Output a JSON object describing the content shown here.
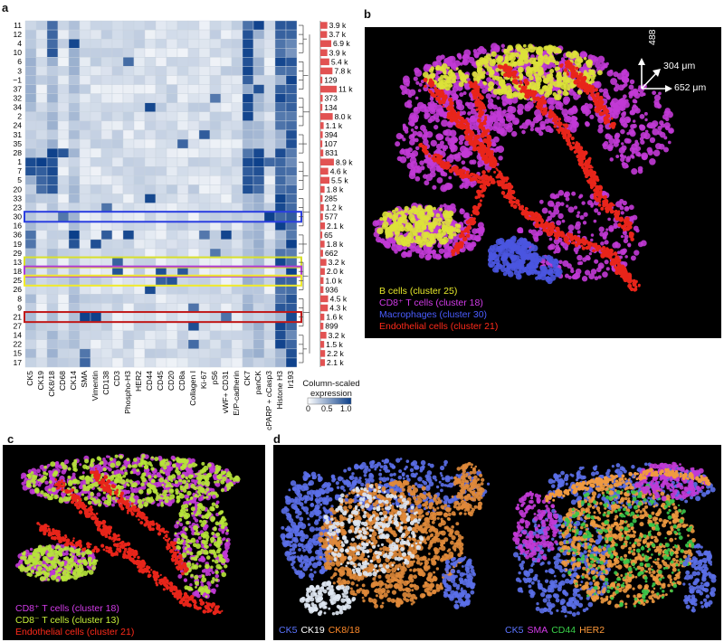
{
  "panels": {
    "a": {
      "letter": "a",
      "rows": [
        "11",
        "12",
        "4",
        "10",
        "6",
        "3",
        "−1",
        "37",
        "32",
        "34",
        "2",
        "24",
        "31",
        "35",
        "28",
        "1",
        "7",
        "5",
        "20",
        "33",
        "23",
        "30",
        "16",
        "36",
        "19",
        "29",
        "13",
        "18",
        "25",
        "26",
        "8",
        "9",
        "21",
        "27",
        "14",
        "22",
        "15",
        "17"
      ],
      "columns": [
        "CK5",
        "CK19",
        "CK8/18",
        "CD68",
        "CK14",
        "SMA",
        "Vimentin",
        "CD138",
        "CD3",
        "Phospho-H3",
        "HER2",
        "CD44",
        "CD45",
        "CD20",
        "CD8a",
        "Collagen I",
        "Ki-67",
        "pS6",
        "vWF+ CD31",
        "E/P-cadherin",
        "CK7",
        "panCK",
        "cPARP + cCasp3",
        "Histone H3",
        "Ir193"
      ],
      "cell_counts": [
        "3.9 k",
        "3.7 k",
        "6.9 k",
        "3.9 k",
        "5.4 k",
        "7.8 k",
        "129",
        "11 k",
        "373",
        "134",
        "8.0 k",
        "1.1 k",
        "394",
        "107",
        "831",
        "8.9 k",
        "4.6 k",
        "5.5 k",
        "1.8 k",
        "285",
        "1.2 k",
        "577",
        "2.1 k",
        "65",
        "1.8 k",
        "662",
        "3.2 k",
        "2.0 k",
        "1.0 k",
        "936",
        "4.5 k",
        "4.3 k",
        "1.6 k",
        "899",
        "3.2 k",
        "1.5 k",
        "2.2 k",
        "2.1 k"
      ],
      "count_values": [
        3900,
        3700,
        6900,
        3900,
        5400,
        7800,
        129,
        11000,
        373,
        134,
        8000,
        1100,
        394,
        107,
        831,
        8900,
        4600,
        5500,
        1800,
        285,
        1200,
        577,
        2100,
        65,
        1800,
        662,
        3200,
        2000,
        1000,
        936,
        4500,
        4300,
        1600,
        899,
        3200,
        1500,
        2200,
        2100
      ],
      "highlights": [
        {
          "row": "30",
          "color": "#2b3fe0"
        },
        {
          "row": "13",
          "color": "#d8e02a"
        },
        {
          "row": "18",
          "color": "#b03ad6"
        },
        {
          "row": "25",
          "color": "#f0ea2a"
        },
        {
          "row": "21",
          "color": "#c01818"
        }
      ],
      "colorbar": {
        "title": "Column-scaled expression",
        "ticks": [
          "0",
          "0.5",
          "1.0"
        ],
        "low_color": "#ffffff",
        "high_color": "#0b3f8a"
      }
    },
    "b": {
      "letter": "b",
      "axes": {
        "y": "488 μm",
        "z": "304 μm",
        "x": "652 μm"
      },
      "legend": [
        {
          "text": "B cells (cluster 25)",
          "color": "#e6e82a"
        },
        {
          "text": "CD8⁺ T cells (cluster 18)",
          "color": "#d23be8"
        },
        {
          "text": "Macrophages (cluster 30)",
          "color": "#4a5cff"
        },
        {
          "text": "Endothelial cells (cluster 21)",
          "color": "#ff2a1a"
        }
      ]
    },
    "c": {
      "letter": "c",
      "legend": [
        {
          "text": "CD8⁺ T cells (cluster 18)",
          "color": "#d23be8"
        },
        {
          "text": "CD8⁻ T cells (cluster 13)",
          "color": "#c6ef3a"
        },
        {
          "text": "Endothelial cells (cluster 21)",
          "color": "#ff2a1a"
        }
      ]
    },
    "d": {
      "letter": "d",
      "left_legend": [
        {
          "text": "CK5",
          "color": "#5b74ff"
        },
        {
          "text": "CK19",
          "color": "#ffffff"
        },
        {
          "text": "CK8/18",
          "color": "#ff8a2a"
        }
      ],
      "right_legend": [
        {
          "text": "CK5",
          "color": "#5b74ff"
        },
        {
          "text": "SMA",
          "color": "#d23be8"
        },
        {
          "text": "CD44",
          "color": "#3ad24a"
        },
        {
          "text": "HER2",
          "color": "#ff9a3a"
        }
      ]
    }
  }
}
